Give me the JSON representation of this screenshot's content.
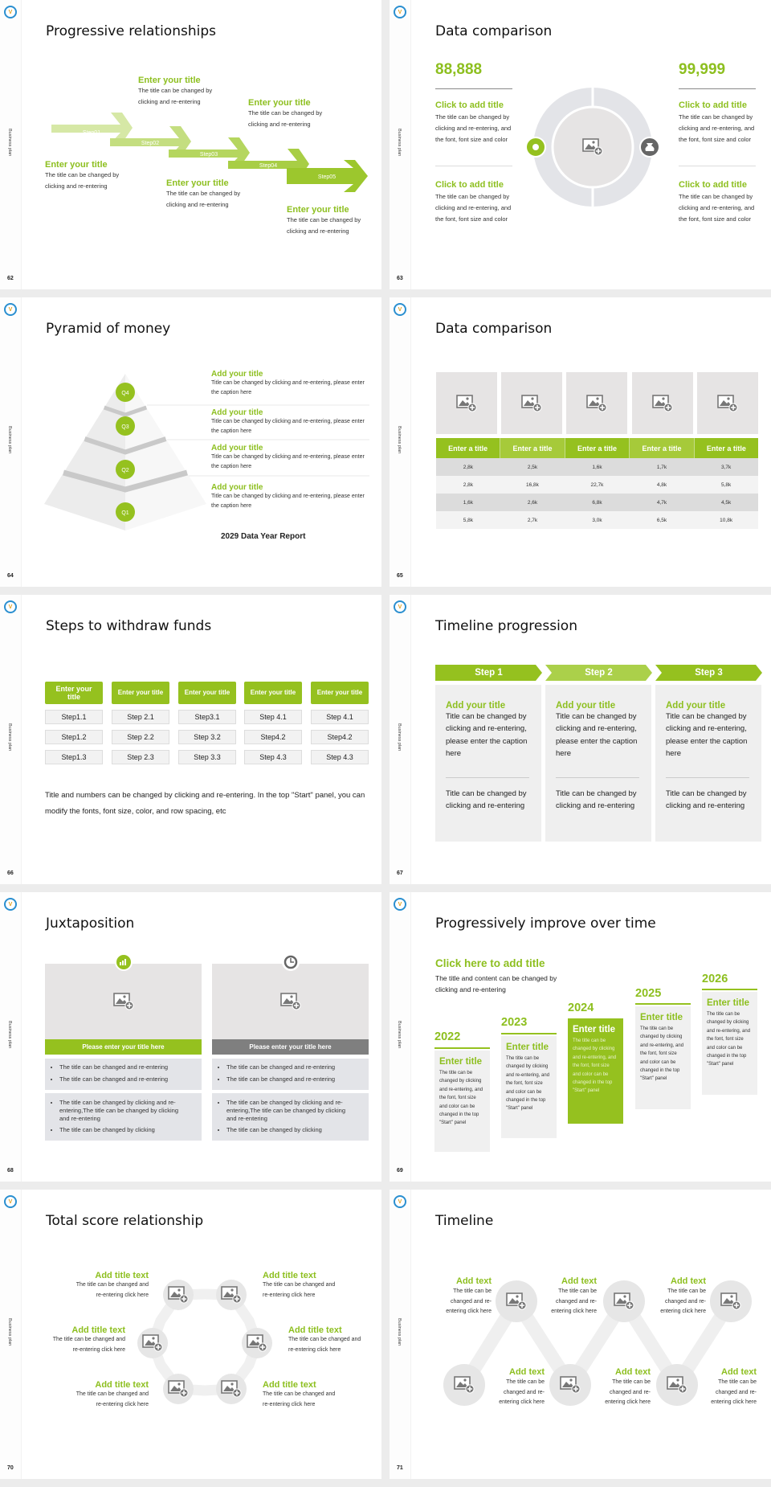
{
  "common": {
    "side_label": "Business plan",
    "logo_letter": "V"
  },
  "colors": {
    "accent": "#95c11f",
    "gray_panel": "#e6e6e6",
    "dark_gray": "#7f7f7f"
  },
  "s62": {
    "page": "62",
    "title": "Progressive relationships",
    "steps": [
      "Step01",
      "Step02",
      "Step03",
      "Step04",
      "Step05"
    ],
    "items": [
      {
        "title": "Enter your title",
        "body": "The title can be changed by clicking and re-entering"
      },
      {
        "title": "Enter your title",
        "body": "The title can be changed by clicking and re-entering"
      },
      {
        "title": "Enter your title",
        "body": "The title can be changed by clicking and re-entering"
      },
      {
        "title": "Enter your title",
        "body": "The title can be changed by clicking and re-entering"
      },
      {
        "title": "Enter your title",
        "body": "The title can be changed by clicking and re-entering"
      }
    ]
  },
  "s63": {
    "page": "63",
    "title": "Data comparison",
    "left": {
      "value": "88,888",
      "blocks": [
        {
          "title": "Click to add title",
          "body": "The title can be changed by clicking and re-entering, and the font, font size and color"
        },
        {
          "title": "Click to add title",
          "body": "The title can be changed by clicking and re-entering, and the font, font size and color"
        }
      ]
    },
    "right": {
      "value": "99,999",
      "blocks": [
        {
          "title": "Click to add title",
          "body": "The title can be changed by clicking and re-entering, and the font, font size and color"
        },
        {
          "title": "Click to add title",
          "body": "The title can be changed by clicking and re-entering, and the font, font size and color"
        }
      ]
    }
  },
  "s64": {
    "page": "64",
    "title": "Pyramid of money",
    "levels": [
      "Q4",
      "Q3",
      "Q2",
      "Q1"
    ],
    "items": [
      {
        "title": "Add your title",
        "body": "Title can be changed by clicking and re-entering, please enter the caption here"
      },
      {
        "title": "Add your title",
        "body": "Title can be changed by clicking and re-entering, please enter the caption here"
      },
      {
        "title": "Add your title",
        "body": "Title can be changed by clicking and re-entering, please enter the caption here"
      },
      {
        "title": "Add your title",
        "body": "Title can be changed by clicking and re-entering, please enter the caption here"
      }
    ],
    "report": "2029 Data Year Report"
  },
  "s65": {
    "page": "65",
    "title": "Data comparison",
    "headers": [
      "Enter a title",
      "Enter a title",
      "Enter a title",
      "Enter a title",
      "Enter a title"
    ],
    "rows": [
      [
        "2,8k",
        "2,5k",
        "1,6k",
        "1,7k",
        "3,7k"
      ],
      [
        "2,8k",
        "16,8k",
        "22,7k",
        "4,8k",
        "5,8k"
      ],
      [
        "1,6k",
        "2,6k",
        "6,8k",
        "4,7k",
        "4,5k"
      ],
      [
        "5,8k",
        "2,7k",
        "3,0k",
        "6,5k",
        "10,8k"
      ]
    ]
  },
  "s66": {
    "page": "66",
    "title": "Steps to withdraw funds",
    "columns": [
      {
        "header": "Enter your title",
        "steps": [
          "Step1.1",
          "Step1.2",
          "Step1.3"
        ]
      },
      {
        "header": "Enter your title",
        "steps": [
          "Step 2.1",
          "Step 2.2",
          "Step 2.3"
        ]
      },
      {
        "header": "Enter your title",
        "steps": [
          "Step3.1",
          "Step 3.2",
          "Step 3.3"
        ]
      },
      {
        "header": "Enter your title",
        "steps": [
          "Step 4.1",
          "Step4.2",
          "Step 4.3"
        ]
      },
      {
        "header": "Enter your title",
        "steps": [
          "Step 4.1",
          "Step4.2",
          "Step 4.3"
        ]
      }
    ],
    "note": "Title and numbers can be changed by clicking and re-entering. In the top \"Start\" panel, you can modify the fonts, font size, color, and row spacing, etc"
  },
  "s67": {
    "page": "67",
    "title": "Timeline progression",
    "columns": [
      {
        "step": "Step 1",
        "title": "Add your title",
        "body": "Title can be changed by clicking and re-entering, please enter the caption here",
        "body2": "Title can be changed by clicking and re-entering"
      },
      {
        "step": "Step 2",
        "title": "Add your title",
        "body": "Title can be changed by clicking and re-entering, please enter the caption here",
        "body2": "Title can be changed by clicking and re-entering"
      },
      {
        "step": "Step 3",
        "title": "Add your title",
        "body": "Title can be changed by clicking and re-entering, please enter the caption here",
        "body2": "Title can be changed by clicking and re-entering"
      }
    ]
  },
  "s68": {
    "page": "68",
    "title": "Juxtaposition",
    "panels": [
      {
        "label": "Please enter your title here",
        "icon": "bar-chart-icon",
        "bullets1": [
          "The title can be changed and re-entering",
          "The title can be changed and re-entering"
        ],
        "bullets2": [
          "The title can be changed by clicking and re-entering,The title can be changed by clicking and re-entering",
          "The title can be changed by clicking"
        ]
      },
      {
        "label": "Please enter your title here",
        "icon": "clock-icon",
        "bullets1": [
          "The title can be changed and re-entering",
          "The title can be changed and re-entering"
        ],
        "bullets2": [
          "The title can be changed by clicking and re-entering,The title can be changed by clicking and re-entering",
          "The title can be changed by clicking"
        ]
      }
    ]
  },
  "s69": {
    "page": "69",
    "title": "Progressively improve over time",
    "heading": "Click here to add title",
    "intro": "The title and content can be changed by clicking and re-entering",
    "columns": [
      {
        "year": "2022",
        "title": "Enter title",
        "body": "The title can be changed by clicking and re-entering, and the font, font size and color can be changed in the top \"Start\" panel"
      },
      {
        "year": "2023",
        "title": "Enter title",
        "body": "The title can be changed by clicking and re-entering, and the font, font size and color can be changed in the top \"Start\" panel"
      },
      {
        "year": "2024",
        "title": "Enter title",
        "body": "The title can be changed by clicking and re-entering, and the font, font size and color can be changed in the top \"Start\" panel"
      },
      {
        "year": "2025",
        "title": "Enter title",
        "body": "The title can be changed by clicking and re-entering, and the font, font size and color can be changed in the top \"Start\" panel"
      },
      {
        "year": "2026",
        "title": "Enter title",
        "body": "The title can be changed by clicking and re-entering, and the font, font size and color can be changed in the top \"Start\" panel"
      }
    ]
  },
  "s70": {
    "page": "70",
    "title": "Total score relationship",
    "items": [
      {
        "title": "Add title text",
        "body": "The title can be changed and re-entering click here"
      },
      {
        "title": "Add title text",
        "body": "The title can be changed and re-entering click here"
      },
      {
        "title": "Add title text",
        "body": "The title can be changed and re-entering click here"
      },
      {
        "title": "Add title text",
        "body": "The title can be changed and re-entering click here"
      },
      {
        "title": "Add title text",
        "body": "The title can be changed and re-entering click here"
      },
      {
        "title": "Add title text",
        "body": "The title can be changed and re-entering click here"
      }
    ]
  },
  "s71": {
    "page": "71",
    "title": "Timeline",
    "items": [
      {
        "title": "Add text",
        "body": "The title can be changed and re-entering click here"
      },
      {
        "title": "Add text",
        "body": "The title can be changed and re-entering click here"
      },
      {
        "title": "Add text",
        "body": "The title can be changed and re-entering click here"
      },
      {
        "title": "Add text",
        "body": "The title can be changed and re-entering click here"
      },
      {
        "title": "Add text",
        "body": "The title can be changed and re-entering click here"
      },
      {
        "title": "Add text",
        "body": "The title can be changed and re-entering click here"
      }
    ]
  }
}
